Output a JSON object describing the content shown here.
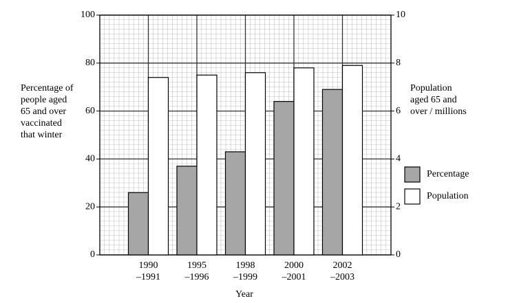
{
  "chart_data": {
    "type": "bar",
    "categories": [
      "1990\n–1991",
      "1995\n–1996",
      "1998\n–1999",
      "2000\n–2001",
      "2002\n–2003"
    ],
    "x_label": "Year",
    "y_label": "Percentage of\npeople aged\n65 and over\nvaccinated\nthat winter",
    "y2_label": "Population\naged 65 and\nover / millions",
    "series": [
      {
        "name": "Percentage",
        "color": "#a6a6a6",
        "values": [
          26,
          37,
          43,
          64,
          69
        ]
      },
      {
        "name": "Population",
        "color": "#ffffff",
        "axis": "y2",
        "values": [
          7.4,
          7.5,
          7.6,
          7.8,
          7.9
        ]
      }
    ],
    "ylim": [
      0,
      100
    ],
    "yticks": [
      0,
      20,
      40,
      60,
      80,
      100
    ],
    "y2lim": [
      0,
      10
    ],
    "y2ticks": [
      0,
      2,
      4,
      6,
      8,
      10
    ],
    "grid": true,
    "legend": "right"
  }
}
